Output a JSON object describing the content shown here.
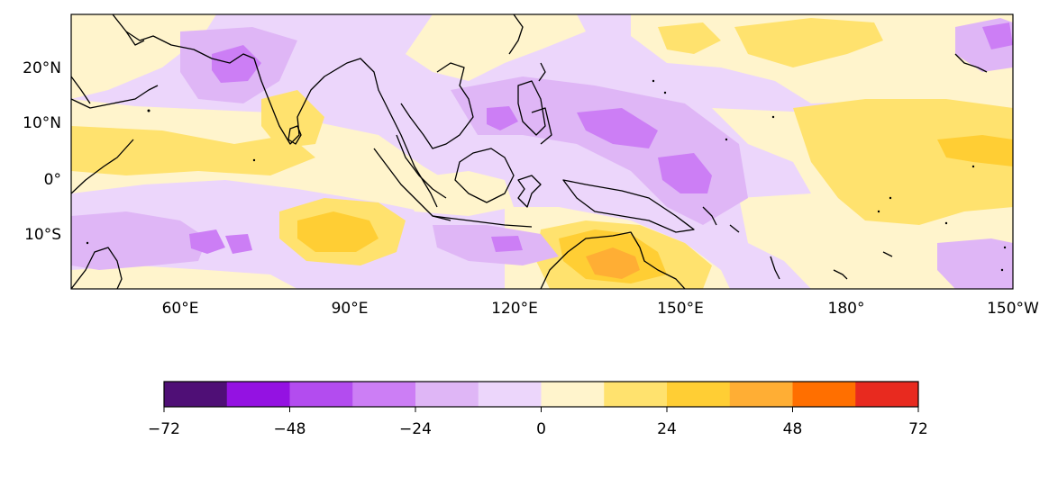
{
  "map": {
    "lon_labels": [
      "60°E",
      "90°E",
      "120°E",
      "150°E",
      "180°",
      "150°W"
    ],
    "lat_labels": [
      "20°N",
      "10°N",
      "0°",
      "10°S"
    ]
  },
  "colorbar": {
    "tick_labels": [
      "−72",
      "−48",
      "−24",
      "0",
      "24",
      "48",
      "72"
    ],
    "levels": [
      -72,
      -60,
      -48,
      -36,
      -24,
      -12,
      0,
      12,
      24,
      36,
      48,
      60,
      72
    ],
    "colors": [
      "#4f0f76",
      "#9412e2",
      "#b34cef",
      "#cc7ef5",
      "#dfb6f6",
      "#ecd6fb",
      "#fff4cc",
      "#ffe26e",
      "#ffce34",
      "#ffae34",
      "#ff6f00",
      "#e82a1f"
    ]
  }
}
